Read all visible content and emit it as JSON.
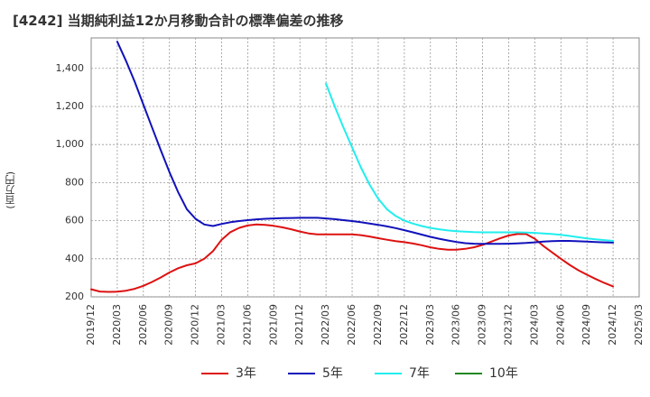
{
  "chart_data": {
    "type": "line",
    "title": "[4242]  当期純利益12か月移動合計の標準偏差の推移",
    "ylabel": "(百万円)",
    "xlabel": "",
    "ylim": [
      200,
      1560
    ],
    "y_ticks": [
      200,
      400,
      600,
      800,
      1000,
      1200,
      1400
    ],
    "y_tick_labels": [
      "200",
      "400",
      "600",
      "800",
      "1,000",
      "1,200",
      "1,400"
    ],
    "x_tick_labels": [
      "2019/12",
      "2020/03",
      "2020/06",
      "2020/09",
      "2020/12",
      "2021/03",
      "2021/06",
      "2021/09",
      "2021/12",
      "2022/03",
      "2022/06",
      "2022/09",
      "2022/12",
      "2023/03",
      "2023/06",
      "2023/09",
      "2023/12",
      "2024/03",
      "2024/06",
      "2024/09",
      "2024/12",
      "2025/03"
    ],
    "grid": true,
    "legend_position": "bottom",
    "series": [
      {
        "name": "3年",
        "color": "#dd1111",
        "points": [
          [
            "2019/12",
            240
          ],
          [
            "2020/01",
            228
          ],
          [
            "2020/02",
            226
          ],
          [
            "2020/03",
            227
          ],
          [
            "2020/04",
            232
          ],
          [
            "2020/05",
            242
          ],
          [
            "2020/06",
            258
          ],
          [
            "2020/07",
            278
          ],
          [
            "2020/08",
            302
          ],
          [
            "2020/09",
            328
          ],
          [
            "2020/10",
            350
          ],
          [
            "2020/11",
            366
          ],
          [
            "2020/12",
            376
          ],
          [
            "2021/01",
            400
          ],
          [
            "2021/02",
            440
          ],
          [
            "2021/03",
            500
          ],
          [
            "2021/04",
            540
          ],
          [
            "2021/05",
            562
          ],
          [
            "2021/06",
            575
          ],
          [
            "2021/07",
            580
          ],
          [
            "2021/08",
            578
          ],
          [
            "2021/09",
            573
          ],
          [
            "2021/10",
            565
          ],
          [
            "2021/11",
            555
          ],
          [
            "2021/12",
            543
          ],
          [
            "2022/01",
            533
          ],
          [
            "2022/02",
            528
          ],
          [
            "2022/03",
            528
          ],
          [
            "2022/04",
            528
          ],
          [
            "2022/05",
            528
          ],
          [
            "2022/06",
            528
          ],
          [
            "2022/07",
            524
          ],
          [
            "2022/08",
            517
          ],
          [
            "2022/09",
            508
          ],
          [
            "2022/10",
            500
          ],
          [
            "2022/11",
            493
          ],
          [
            "2022/12",
            487
          ],
          [
            "2023/01",
            480
          ],
          [
            "2023/02",
            471
          ],
          [
            "2023/03",
            460
          ],
          [
            "2023/04",
            452
          ],
          [
            "2023/05",
            448
          ],
          [
            "2023/06",
            448
          ],
          [
            "2023/07",
            452
          ],
          [
            "2023/08",
            460
          ],
          [
            "2023/09",
            473
          ],
          [
            "2023/10",
            490
          ],
          [
            "2023/11",
            507
          ],
          [
            "2023/12",
            522
          ],
          [
            "2024/01",
            530
          ],
          [
            "2024/02",
            530
          ],
          [
            "2024/03",
            505
          ],
          [
            "2024/04",
            467
          ],
          [
            "2024/05",
            433
          ],
          [
            "2024/06",
            400
          ],
          [
            "2024/07",
            368
          ],
          [
            "2024/08",
            340
          ],
          [
            "2024/09",
            316
          ],
          [
            "2024/10",
            294
          ],
          [
            "2024/11",
            273
          ],
          [
            "2024/12",
            255
          ]
        ]
      },
      {
        "name": "5年",
        "color": "#1111bb",
        "points": [
          [
            "2020/03",
            1540
          ],
          [
            "2020/04",
            1440
          ],
          [
            "2020/05",
            1330
          ],
          [
            "2020/06",
            1210
          ],
          [
            "2020/07",
            1090
          ],
          [
            "2020/08",
            970
          ],
          [
            "2020/09",
            855
          ],
          [
            "2020/10",
            750
          ],
          [
            "2020/11",
            660
          ],
          [
            "2020/12",
            610
          ],
          [
            "2021/01",
            580
          ],
          [
            "2021/02",
            572
          ],
          [
            "2021/03",
            583
          ],
          [
            "2021/04",
            592
          ],
          [
            "2021/05",
            598
          ],
          [
            "2021/06",
            603
          ],
          [
            "2021/07",
            607
          ],
          [
            "2021/08",
            610
          ],
          [
            "2021/09",
            612
          ],
          [
            "2021/10",
            613
          ],
          [
            "2021/11",
            614
          ],
          [
            "2021/12",
            615
          ],
          [
            "2022/01",
            615
          ],
          [
            "2022/02",
            615
          ],
          [
            "2022/03",
            612
          ],
          [
            "2022/04",
            608
          ],
          [
            "2022/05",
            603
          ],
          [
            "2022/06",
            598
          ],
          [
            "2022/07",
            592
          ],
          [
            "2022/08",
            585
          ],
          [
            "2022/09",
            578
          ],
          [
            "2022/10",
            570
          ],
          [
            "2022/11",
            561
          ],
          [
            "2022/12",
            550
          ],
          [
            "2023/01",
            539
          ],
          [
            "2023/02",
            527
          ],
          [
            "2023/03",
            515
          ],
          [
            "2023/04",
            505
          ],
          [
            "2023/05",
            496
          ],
          [
            "2023/06",
            488
          ],
          [
            "2023/07",
            482
          ],
          [
            "2023/08",
            479
          ],
          [
            "2023/09",
            478
          ],
          [
            "2023/10",
            478
          ],
          [
            "2023/11",
            478
          ],
          [
            "2023/12",
            479
          ],
          [
            "2024/01",
            481
          ],
          [
            "2024/02",
            483
          ],
          [
            "2024/03",
            486
          ],
          [
            "2024/04",
            490
          ],
          [
            "2024/05",
            493
          ],
          [
            "2024/06",
            494
          ],
          [
            "2024/07",
            494
          ],
          [
            "2024/08",
            492
          ],
          [
            "2024/09",
            490
          ],
          [
            "2024/10",
            488
          ],
          [
            "2024/11",
            486
          ],
          [
            "2024/12",
            485
          ]
        ]
      },
      {
        "name": "7年",
        "color": "#22eeee",
        "points": [
          [
            "2022/03",
            1320
          ],
          [
            "2022/04",
            1200
          ],
          [
            "2022/05",
            1090
          ],
          [
            "2022/06",
            985
          ],
          [
            "2022/07",
            880
          ],
          [
            "2022/08",
            790
          ],
          [
            "2022/09",
            715
          ],
          [
            "2022/10",
            660
          ],
          [
            "2022/11",
            625
          ],
          [
            "2022/12",
            600
          ],
          [
            "2023/01",
            585
          ],
          [
            "2023/02",
            572
          ],
          [
            "2023/03",
            562
          ],
          [
            "2023/04",
            555
          ],
          [
            "2023/05",
            549
          ],
          [
            "2023/06",
            545
          ],
          [
            "2023/07",
            542
          ],
          [
            "2023/08",
            540
          ],
          [
            "2023/09",
            539
          ],
          [
            "2023/10",
            539
          ],
          [
            "2023/11",
            539
          ],
          [
            "2023/12",
            539
          ],
          [
            "2024/01",
            539
          ],
          [
            "2024/02",
            538
          ],
          [
            "2024/03",
            536
          ],
          [
            "2024/04",
            533
          ],
          [
            "2024/05",
            530
          ],
          [
            "2024/06",
            526
          ],
          [
            "2024/07",
            520
          ],
          [
            "2024/08",
            513
          ],
          [
            "2024/09",
            507
          ],
          [
            "2024/10",
            502
          ],
          [
            "2024/11",
            498
          ],
          [
            "2024/12",
            494
          ]
        ]
      },
      {
        "name": "10年",
        "color": "#228822",
        "points": []
      }
    ]
  }
}
